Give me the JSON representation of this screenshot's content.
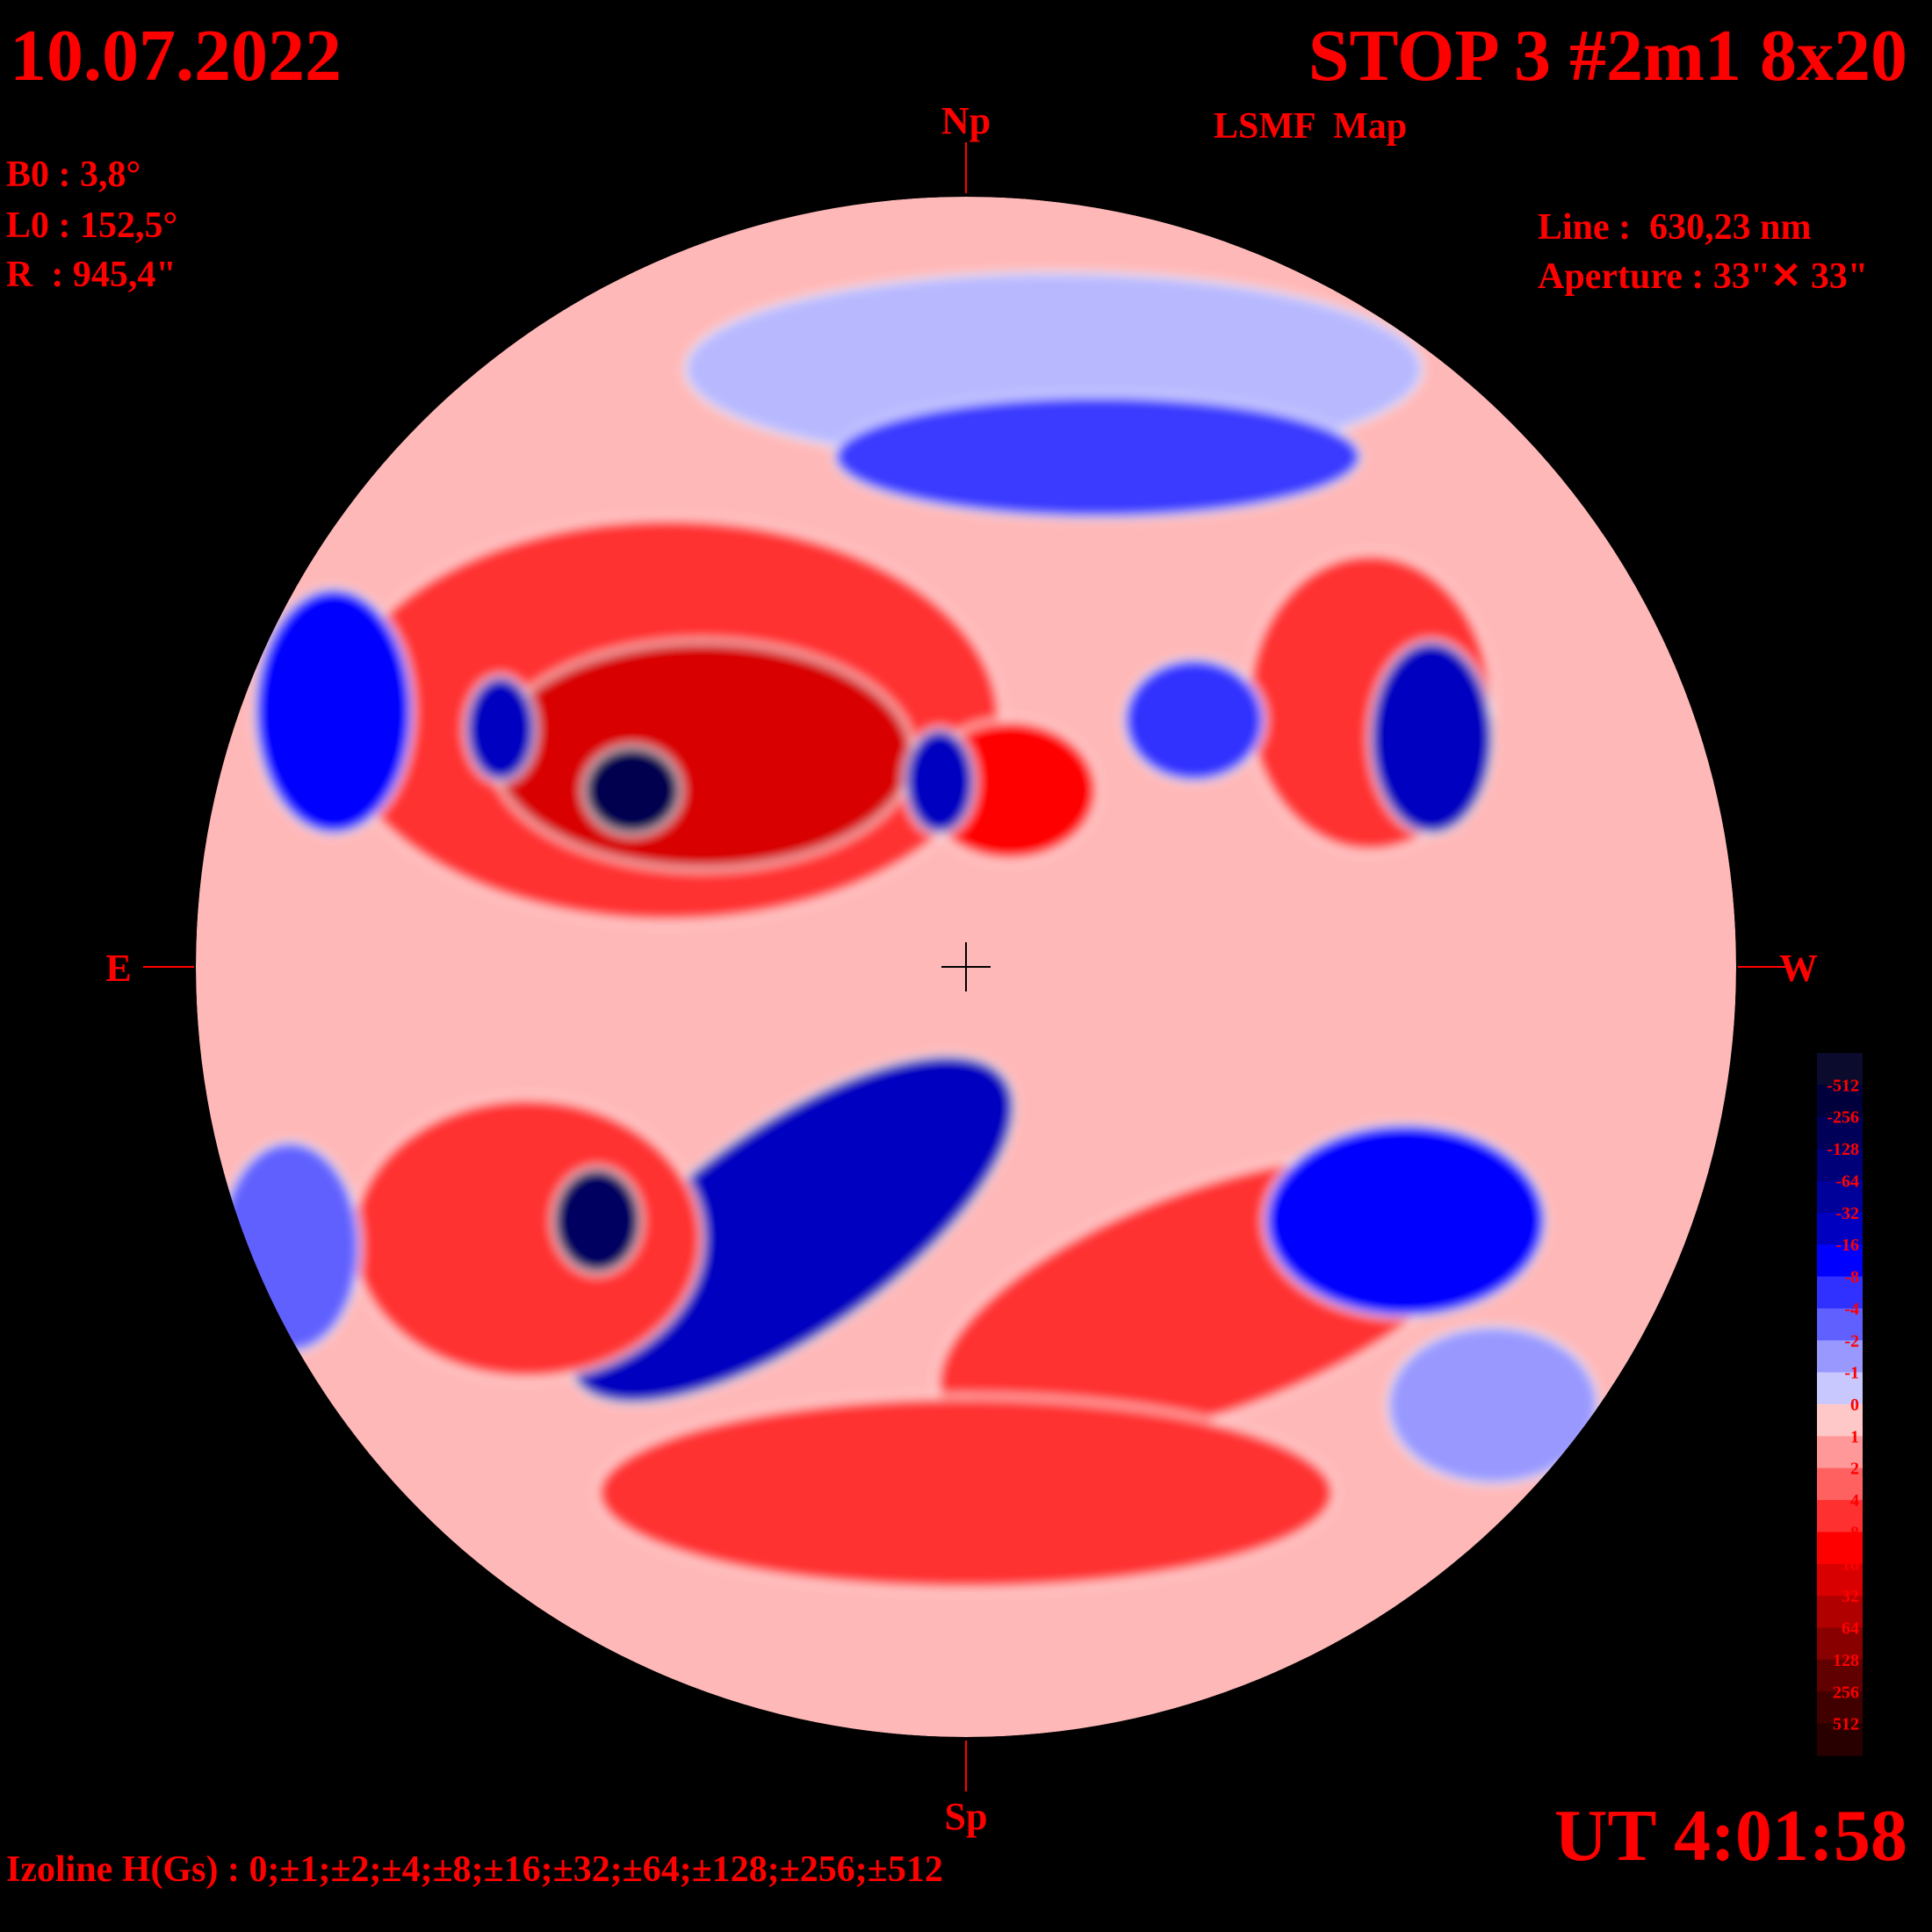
{
  "header": {
    "date": "10.07.2022",
    "title": "STOP 3 #2m1 8x20",
    "subtitle": "LSMF  Map",
    "time": "UT 4:01:58"
  },
  "parameters": {
    "b0": "B0 : 3,8°",
    "l0": "L0 : 152,5°",
    "radius": "R  : 945,4\"",
    "line": "Line :  630,23 nm",
    "aperture": "Aperture : 33\"✕ 33\""
  },
  "directions": {
    "north": "Np",
    "south": "Sp",
    "east": "E",
    "west": "W"
  },
  "colorbar": {
    "labels": [
      "-512",
      "-256",
      "-128",
      "-64",
      "-32",
      "-16",
      "-8",
      "-4",
      "-2",
      "-1",
      "0",
      "1",
      "2",
      "4",
      "8",
      "16",
      "32",
      "64",
      "128",
      "256",
      "512"
    ],
    "colors": [
      "#0b0b2e",
      "#00003c",
      "#000058",
      "#000078",
      "#00009a",
      "#0000c0",
      "#0000ff",
      "#3030ff",
      "#6060ff",
      "#9898ff",
      "#c8c8ff",
      "#ffc8c8",
      "#ff9898",
      "#ff6060",
      "#ff3030",
      "#ff0000",
      "#d80000",
      "#b00000",
      "#880000",
      "#600000",
      "#400000",
      "#280000"
    ]
  },
  "footer": {
    "izolines": "Izoline H(Gs) : 0;±1;±2;±4;±8;±16;±32;±64;±128;±256;±512"
  }
}
